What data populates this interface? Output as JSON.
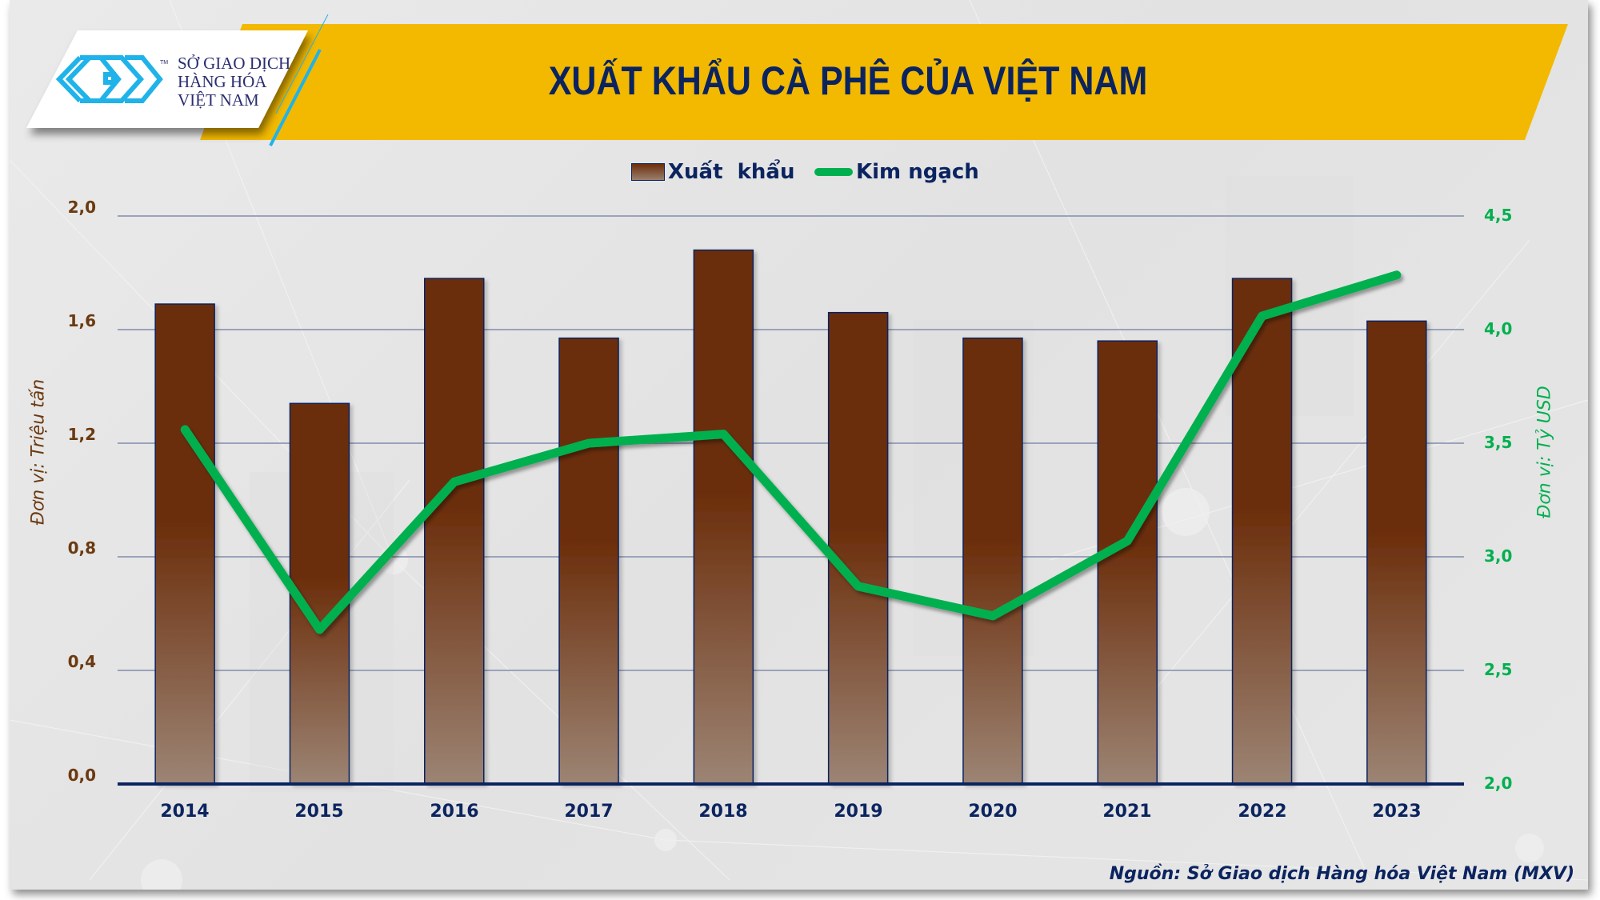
{
  "header": {
    "title": "XUẤT KHẨU CÀ PHÊ CỦA VIỆT NAM",
    "logo": {
      "line1": "SỞ GIAO DỊCH",
      "line2": "HÀNG HÓA",
      "line3": "VIỆT NAM",
      "tm": "TM"
    }
  },
  "legend": {
    "bar_label": "Xuất  khẩu",
    "line_label": "Kim ngạch"
  },
  "axes": {
    "left_title": "Đơn vị: Triệu tấn",
    "right_title": "Đơn vị: Tỷ USD",
    "left_ticks": [
      "0,0",
      "0,4",
      "0,8",
      "1,2",
      "1,6",
      "2,0"
    ],
    "right_ticks": [
      "2,0",
      "2,5",
      "3,0",
      "3,5",
      "4,0",
      "4,5"
    ]
  },
  "footer": {
    "source": "Nguồn: Sở Giao dịch Hàng hóa Việt Nam (MXV)"
  },
  "colors": {
    "banner": "#f2b900",
    "title": "#0b2460",
    "bar_top": "#6b2d0a",
    "bar_bottom": "#9c8474",
    "bar_border": "#0b2460",
    "line": "#00b050",
    "left_axis": "#6b3a10",
    "right_axis": "#00b050",
    "gridline": "#9aa3ba",
    "logo_blue": "#1fb3ea"
  },
  "chart_data": {
    "type": "bar",
    "title": "XUẤT KHẨU CÀ PHÊ CỦA VIỆT NAM",
    "categories": [
      "2014",
      "2015",
      "2016",
      "2017",
      "2018",
      "2019",
      "2020",
      "2021",
      "2022",
      "2023"
    ],
    "series": [
      {
        "name": "Xuất khẩu",
        "type": "bar",
        "axis": "left",
        "unit": "Triệu tấn",
        "values": [
          1.69,
          1.34,
          1.78,
          1.57,
          1.88,
          1.66,
          1.57,
          1.56,
          1.78,
          1.63
        ]
      },
      {
        "name": "Kim ngạch",
        "type": "line",
        "axis": "right",
        "unit": "Tỷ USD",
        "values": [
          3.56,
          2.68,
          3.33,
          3.5,
          3.54,
          2.87,
          2.74,
          3.07,
          4.06,
          4.24
        ]
      }
    ],
    "xlabel": "",
    "ylabel": "Đơn vị: Triệu tấn",
    "y2label": "Đơn vị: Tỷ USD",
    "ylim": [
      0,
      2.0
    ],
    "y2lim": [
      2.0,
      4.5
    ],
    "yticks": [
      0,
      0.4,
      0.8,
      1.2,
      1.6,
      2.0
    ],
    "y2ticks": [
      2.0,
      2.5,
      3.0,
      3.5,
      4.0,
      4.5
    ],
    "grid": true,
    "legend_position": "top"
  }
}
